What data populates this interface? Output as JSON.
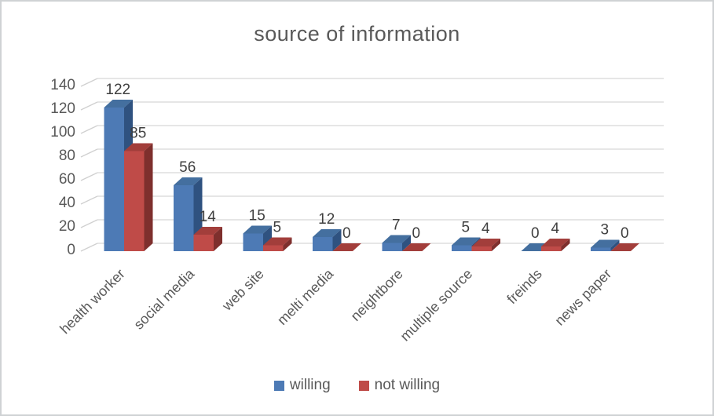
{
  "title": "source of information",
  "colors": {
    "gridline": "#d6d6d6",
    "axis_tick": "#d0d0d0",
    "axis_text": "#595959",
    "value_label_text": "#3f3f3f",
    "category_text": "#595959",
    "legend_text": "#595959",
    "background": "#ffffff",
    "frame_border": "#cfd2d4"
  },
  "chart_data": {
    "type": "bar",
    "style": "3d-clustered-column",
    "title": "source of information",
    "categories": [
      "health worker",
      "social media",
      "web site",
      "melti media",
      "neightbore",
      "multiple source",
      "freinds",
      "news paper"
    ],
    "series": [
      {
        "name": "willing",
        "color": "#4d7ab5",
        "color_top": "#446f9f",
        "color_side": "#2f5280",
        "values": [
          122,
          56,
          15,
          12,
          7,
          5,
          0,
          3
        ]
      },
      {
        "name": "not willing",
        "color": "#bf4b48",
        "color_top": "#a23e3b",
        "color_side": "#7e2f2d",
        "values": [
          85,
          14,
          5,
          0,
          0,
          4,
          4,
          0
        ]
      }
    ],
    "ylim": [
      0,
      140
    ],
    "yticks": [
      0,
      20,
      40,
      60,
      80,
      100,
      120,
      140
    ],
    "grid": true,
    "data_labels": true,
    "legend_position": "bottom",
    "xlabel": "",
    "ylabel": ""
  }
}
